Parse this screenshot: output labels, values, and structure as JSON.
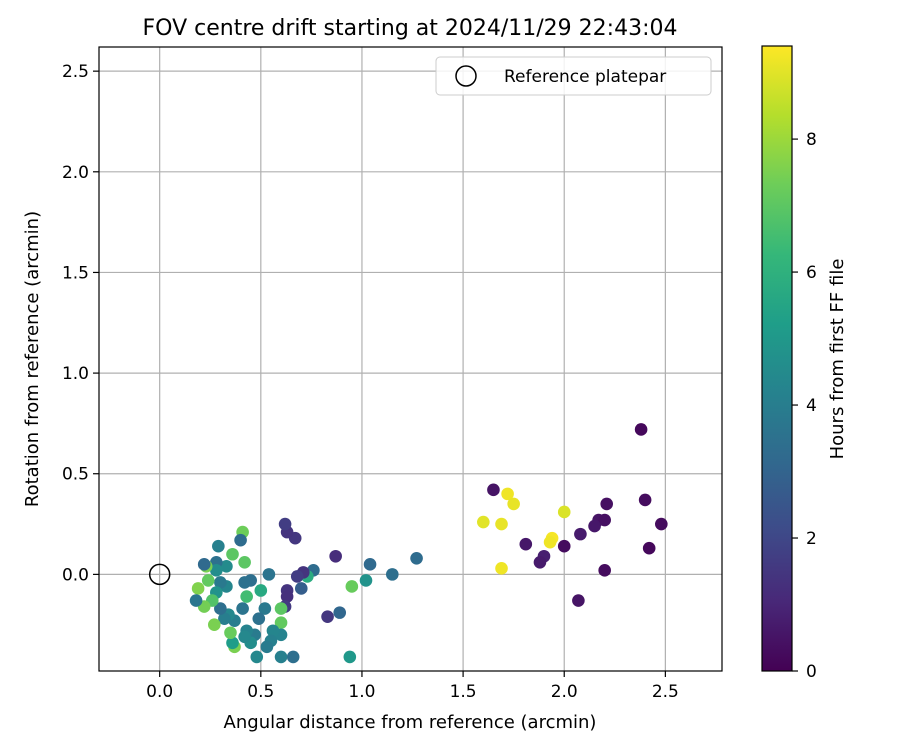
{
  "chart_data": {
    "type": "scatter",
    "title": "FOV centre drift starting at 2024/11/29 22:43:04",
    "xlabel": "Angular distance from reference (arcmin)",
    "ylabel": "Rotation from reference (arcmin)",
    "xlim": [
      -0.3,
      2.78
    ],
    "ylim": [
      -0.48,
      2.62
    ],
    "x_ticks": [
      "0.0",
      "0.5",
      "1.0",
      "1.5",
      "2.0",
      "2.5"
    ],
    "y_ticks": [
      "0.0",
      "0.5",
      "1.0",
      "1.5",
      "2.0",
      "2.5"
    ],
    "grid": true,
    "colormap": "viridis",
    "colorbar": {
      "label": "Hours from first FF file",
      "range": [
        0,
        9.4
      ],
      "ticks": [
        "0",
        "2",
        "4",
        "6",
        "8"
      ]
    },
    "legend": {
      "position": "top-right",
      "entries": [
        {
          "label": "Reference platepar",
          "marker": "open-circle"
        }
      ]
    },
    "reference_point": {
      "x": 0.0,
      "y": 0.0
    },
    "points": [
      {
        "x": 2.38,
        "y": 0.72,
        "h": 0.2
      },
      {
        "x": 2.4,
        "y": 0.37,
        "h": 0.3
      },
      {
        "x": 2.48,
        "y": 0.25,
        "h": 0.3
      },
      {
        "x": 2.42,
        "y": 0.13,
        "h": 0.2
      },
      {
        "x": 2.21,
        "y": 0.35,
        "h": 0.4
      },
      {
        "x": 2.17,
        "y": 0.27,
        "h": 0.5
      },
      {
        "x": 2.2,
        "y": 0.27,
        "h": 0.4
      },
      {
        "x": 2.15,
        "y": 0.24,
        "h": 0.6
      },
      {
        "x": 2.08,
        "y": 0.2,
        "h": 0.7
      },
      {
        "x": 2.2,
        "y": 0.02,
        "h": 0.3
      },
      {
        "x": 2.07,
        "y": -0.13,
        "h": 0.5
      },
      {
        "x": 2.0,
        "y": 0.14,
        "h": 0.3
      },
      {
        "x": 1.9,
        "y": 0.09,
        "h": 0.8
      },
      {
        "x": 1.88,
        "y": 0.06,
        "h": 0.7
      },
      {
        "x": 1.81,
        "y": 0.15,
        "h": 0.6
      },
      {
        "x": 1.65,
        "y": 0.42,
        "h": 0.5
      },
      {
        "x": 1.72,
        "y": 0.4,
        "h": 9.2
      },
      {
        "x": 1.75,
        "y": 0.35,
        "h": 9.1
      },
      {
        "x": 1.6,
        "y": 0.26,
        "h": 9.0
      },
      {
        "x": 1.69,
        "y": 0.25,
        "h": 9.1
      },
      {
        "x": 2.0,
        "y": 0.31,
        "h": 8.9
      },
      {
        "x": 1.94,
        "y": 0.18,
        "h": 9.3
      },
      {
        "x": 1.93,
        "y": 0.16,
        "h": 9.2
      },
      {
        "x": 1.69,
        "y": 0.03,
        "h": 9.2
      },
      {
        "x": 1.27,
        "y": 0.08,
        "h": 3.3
      },
      {
        "x": 1.15,
        "y": 0.0,
        "h": 3.4
      },
      {
        "x": 1.04,
        "y": 0.05,
        "h": 3.2
      },
      {
        "x": 1.02,
        "y": -0.03,
        "h": 4.8
      },
      {
        "x": 0.95,
        "y": -0.06,
        "h": 7.2
      },
      {
        "x": 0.94,
        "y": -0.41,
        "h": 5.0
      },
      {
        "x": 0.89,
        "y": -0.19,
        "h": 3.1
      },
      {
        "x": 0.83,
        "y": -0.21,
        "h": 1.5
      },
      {
        "x": 0.87,
        "y": 0.09,
        "h": 1.2
      },
      {
        "x": 0.76,
        "y": 0.02,
        "h": 3.3
      },
      {
        "x": 0.73,
        "y": -0.01,
        "h": 5.8
      },
      {
        "x": 0.71,
        "y": 0.01,
        "h": 1.4
      },
      {
        "x": 0.68,
        "y": -0.01,
        "h": 1.7
      },
      {
        "x": 0.7,
        "y": -0.07,
        "h": 2.8
      },
      {
        "x": 0.63,
        "y": -0.08,
        "h": 1.4
      },
      {
        "x": 0.63,
        "y": -0.11,
        "h": 1.3
      },
      {
        "x": 0.62,
        "y": -0.16,
        "h": 1.6
      },
      {
        "x": 0.67,
        "y": 0.18,
        "h": 1.5
      },
      {
        "x": 0.63,
        "y": 0.21,
        "h": 1.4
      },
      {
        "x": 0.62,
        "y": 0.25,
        "h": 1.7
      },
      {
        "x": 0.6,
        "y": -0.17,
        "h": 7.0
      },
      {
        "x": 0.6,
        "y": -0.24,
        "h": 7.1
      },
      {
        "x": 0.6,
        "y": -0.3,
        "h": 4.2
      },
      {
        "x": 0.66,
        "y": -0.41,
        "h": 3.4
      },
      {
        "x": 0.6,
        "y": -0.41,
        "h": 4.1
      },
      {
        "x": 0.56,
        "y": -0.28,
        "h": 4.3
      },
      {
        "x": 0.55,
        "y": -0.33,
        "h": 4.1
      },
      {
        "x": 0.53,
        "y": -0.36,
        "h": 3.9
      },
      {
        "x": 0.52,
        "y": -0.17,
        "h": 3.8
      },
      {
        "x": 0.54,
        "y": 0.0,
        "h": 3.6
      },
      {
        "x": 0.5,
        "y": -0.08,
        "h": 5.7
      },
      {
        "x": 0.49,
        "y": -0.22,
        "h": 3.5
      },
      {
        "x": 0.47,
        "y": -0.3,
        "h": 3.9
      },
      {
        "x": 0.48,
        "y": -0.41,
        "h": 4.4
      },
      {
        "x": 0.45,
        "y": -0.34,
        "h": 4.6
      },
      {
        "x": 0.43,
        "y": -0.28,
        "h": 4.2
      },
      {
        "x": 0.42,
        "y": -0.31,
        "h": 4.4
      },
      {
        "x": 0.45,
        "y": -0.03,
        "h": 3.4
      },
      {
        "x": 0.42,
        "y": -0.04,
        "h": 3.5
      },
      {
        "x": 0.43,
        "y": -0.11,
        "h": 6.5
      },
      {
        "x": 0.41,
        "y": -0.17,
        "h": 3.6
      },
      {
        "x": 0.42,
        "y": 0.06,
        "h": 7.0
      },
      {
        "x": 0.41,
        "y": 0.21,
        "h": 7.3
      },
      {
        "x": 0.4,
        "y": 0.17,
        "h": 3.3
      },
      {
        "x": 0.37,
        "y": -0.23,
        "h": 4.0
      },
      {
        "x": 0.37,
        "y": -0.36,
        "h": 7.5
      },
      {
        "x": 0.36,
        "y": -0.34,
        "h": 5.2
      },
      {
        "x": 0.35,
        "y": -0.29,
        "h": 7.2
      },
      {
        "x": 0.34,
        "y": -0.2,
        "h": 4.4
      },
      {
        "x": 0.33,
        "y": -0.06,
        "h": 4.3
      },
      {
        "x": 0.36,
        "y": 0.1,
        "h": 7.0
      },
      {
        "x": 0.33,
        "y": 0.04,
        "h": 4.5
      },
      {
        "x": 0.3,
        "y": -0.04,
        "h": 3.8
      },
      {
        "x": 0.32,
        "y": -0.22,
        "h": 4.0
      },
      {
        "x": 0.3,
        "y": -0.17,
        "h": 3.4
      },
      {
        "x": 0.29,
        "y": 0.14,
        "h": 4.1
      },
      {
        "x": 0.28,
        "y": 0.06,
        "h": 3.5
      },
      {
        "x": 0.28,
        "y": 0.02,
        "h": 4.6
      },
      {
        "x": 0.28,
        "y": -0.09,
        "h": 4.8
      },
      {
        "x": 0.27,
        "y": -0.25,
        "h": 7.5
      },
      {
        "x": 0.26,
        "y": -0.13,
        "h": 6.8
      },
      {
        "x": 0.24,
        "y": -0.03,
        "h": 7.1
      },
      {
        "x": 0.22,
        "y": -0.16,
        "h": 7.4
      },
      {
        "x": 0.23,
        "y": 0.04,
        "h": 7.5
      },
      {
        "x": 0.22,
        "y": 0.05,
        "h": 3.2
      },
      {
        "x": 0.19,
        "y": -0.07,
        "h": 7.6
      },
      {
        "x": 0.18,
        "y": -0.13,
        "h": 3.7
      }
    ]
  }
}
